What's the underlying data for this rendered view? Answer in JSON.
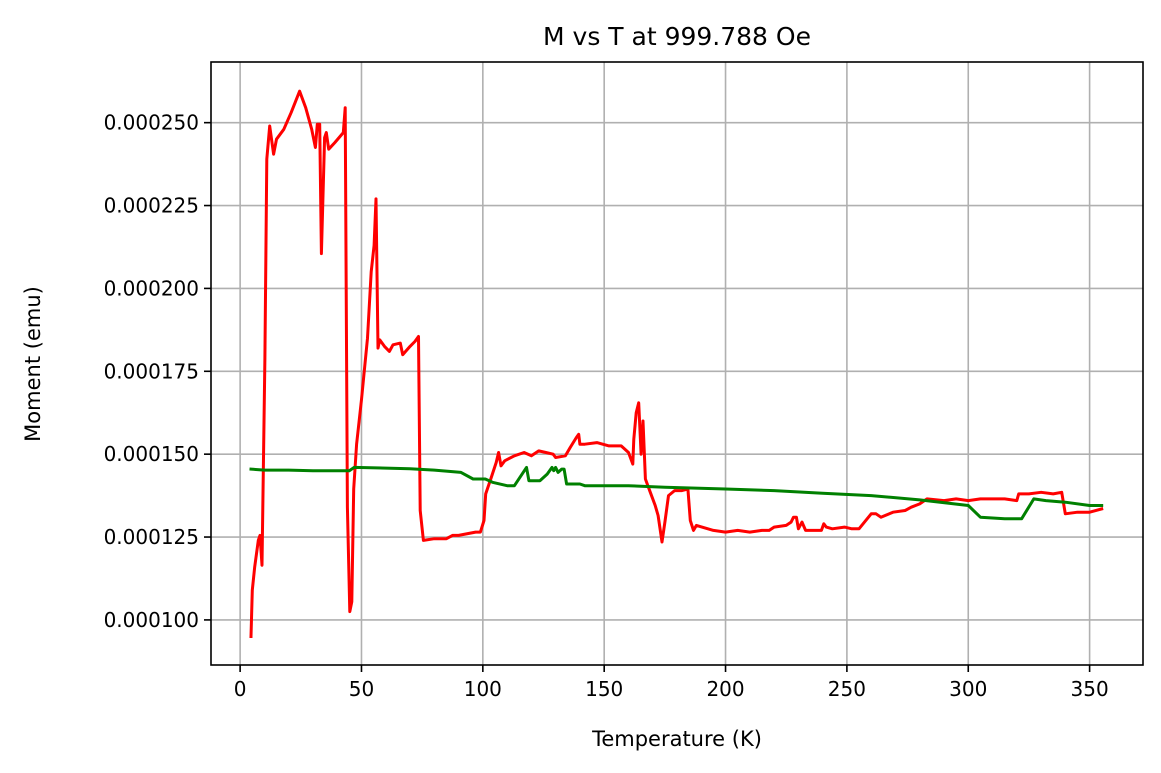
{
  "chart_data": {
    "type": "line",
    "title": "M vs T at 999.788 Oe",
    "xlabel": "Temperature (K)",
    "ylabel": "Moment (emu)",
    "xlim": [
      -12,
      372
    ],
    "ylim": [
      8.64e-05,
      0.0002683
    ],
    "xticks": [
      0,
      50,
      100,
      150,
      200,
      250,
      300,
      350
    ],
    "xtick_labels": [
      "0",
      "50",
      "100",
      "150",
      "200",
      "250",
      "300",
      "350"
    ],
    "yticks": [
      0.0001,
      0.000125,
      0.00015,
      0.000175,
      0.0002,
      0.000225,
      0.00025
    ],
    "ytick_labels": [
      "0.000100",
      "0.000125",
      "0.000150",
      "0.000175",
      "0.000200",
      "0.000225",
      "0.000250"
    ],
    "grid": true,
    "series": [
      {
        "color": "#ff0000",
        "points": [
          [
            4.5,
            9.5e-05
          ],
          [
            5.0,
            0.000109
          ],
          [
            6.0,
            0.000116
          ],
          [
            7.5,
            0.000124
          ],
          [
            8.2,
            0.0001255
          ],
          [
            9.0,
            0.0001165
          ],
          [
            10.2,
            0.000179
          ],
          [
            11.0,
            0.000239
          ],
          [
            12.2,
            0.000249
          ],
          [
            13.8,
            0.0002405
          ],
          [
            15.0,
            0.000245
          ],
          [
            18.0,
            0.000248
          ],
          [
            21.0,
            0.000253
          ],
          [
            24.5,
            0.0002595
          ],
          [
            27.0,
            0.0002545
          ],
          [
            29.5,
            0.000248
          ],
          [
            31.0,
            0.0002425
          ],
          [
            31.8,
            0.0002495
          ],
          [
            32.8,
            0.0002495
          ],
          [
            33.5,
            0.0002105
          ],
          [
            34.8,
            0.0002455
          ],
          [
            35.5,
            0.000247
          ],
          [
            36.5,
            0.000242
          ],
          [
            39.0,
            0.000244
          ],
          [
            42.5,
            0.000247
          ],
          [
            43.3,
            0.0002545
          ],
          [
            44.2,
            0.000134
          ],
          [
            45.2,
            0.0001025
          ],
          [
            46.0,
            0.0001055
          ],
          [
            46.8,
            0.0001395
          ],
          [
            48.0,
            0.000153
          ],
          [
            50.0,
            0.0001665
          ],
          [
            52.5,
            0.000185
          ],
          [
            54.0,
            0.000205
          ],
          [
            55.2,
            0.000213
          ],
          [
            56.0,
            0.000227
          ],
          [
            56.8,
            0.000182
          ],
          [
            57.5,
            0.0001845
          ],
          [
            59.5,
            0.0001825
          ],
          [
            61.5,
            0.000181
          ],
          [
            63.0,
            0.000183
          ],
          [
            66.0,
            0.0001835
          ],
          [
            67.0,
            0.00018
          ],
          [
            70.0,
            0.0001825
          ],
          [
            72.0,
            0.000184
          ],
          [
            73.5,
            0.0001855
          ],
          [
            74.2,
            0.000133
          ],
          [
            75.5,
            0.000124
          ],
          [
            80.0,
            0.0001245
          ],
          [
            85.0,
            0.0001245
          ],
          [
            87.5,
            0.0001255
          ],
          [
            90.0,
            0.0001255
          ],
          [
            97.0,
            0.0001265
          ],
          [
            99.0,
            0.0001265
          ],
          [
            100.5,
            0.00013
          ],
          [
            101.2,
            0.000138
          ],
          [
            103.5,
            0.000143
          ],
          [
            105.5,
            0.0001475
          ],
          [
            106.5,
            0.0001505
          ],
          [
            107.5,
            0.0001465
          ],
          [
            109.0,
            0.000148
          ],
          [
            113.0,
            0.0001495
          ],
          [
            117.0,
            0.0001505
          ],
          [
            120.0,
            0.0001495
          ],
          [
            123.0,
            0.000151
          ],
          [
            126.0,
            0.0001505
          ],
          [
            129.0,
            0.00015
          ],
          [
            130.0,
            0.000149
          ],
          [
            134.0,
            0.0001495
          ],
          [
            136.0,
            0.000152
          ],
          [
            138.5,
            0.000155
          ],
          [
            139.5,
            0.000156
          ],
          [
            140.0,
            0.000153
          ],
          [
            142.0,
            0.000153
          ],
          [
            147.0,
            0.0001535
          ],
          [
            152.0,
            0.0001525
          ],
          [
            157.0,
            0.0001525
          ],
          [
            160.0,
            0.0001505
          ],
          [
            161.8,
            0.000147
          ],
          [
            162.2,
            0.0001545
          ],
          [
            163.2,
            0.0001625
          ],
          [
            164.2,
            0.0001655
          ],
          [
            165.2,
            0.00015
          ],
          [
            166.0,
            0.00016
          ],
          [
            167.0,
            0.0001425
          ],
          [
            169.0,
            0.0001385
          ],
          [
            171.0,
            0.0001345
          ],
          [
            172.2,
            0.0001315
          ],
          [
            173.8,
            0.0001235
          ],
          [
            175.0,
            0.0001295
          ],
          [
            176.5,
            0.0001375
          ],
          [
            179.0,
            0.000139
          ],
          [
            182.0,
            0.000139
          ],
          [
            184.5,
            0.0001395
          ],
          [
            185.5,
            0.00013
          ],
          [
            186.8,
            0.000127
          ],
          [
            188.0,
            0.0001285
          ],
          [
            195.0,
            0.000127
          ],
          [
            200.0,
            0.0001265
          ],
          [
            205.0,
            0.000127
          ],
          [
            210.0,
            0.0001265
          ],
          [
            215.0,
            0.000127
          ],
          [
            218.0,
            0.000127
          ],
          [
            220.0,
            0.000128
          ],
          [
            225.0,
            0.0001285
          ],
          [
            227.0,
            0.0001295
          ],
          [
            228.0,
            0.000131
          ],
          [
            229.2,
            0.000131
          ],
          [
            230.0,
            0.0001275
          ],
          [
            231.5,
            0.0001295
          ],
          [
            233.0,
            0.000127
          ],
          [
            239.5,
            0.000127
          ],
          [
            240.5,
            0.000129
          ],
          [
            241.5,
            0.000128
          ],
          [
            244.0,
            0.0001275
          ],
          [
            249.0,
            0.000128
          ],
          [
            252.0,
            0.0001275
          ],
          [
            255.0,
            0.0001275
          ],
          [
            260.0,
            0.000132
          ],
          [
            262.0,
            0.000132
          ],
          [
            264.0,
            0.000131
          ],
          [
            269.0,
            0.0001325
          ],
          [
            274.0,
            0.000133
          ],
          [
            276.5,
            0.000134
          ],
          [
            280.0,
            0.000135
          ],
          [
            283.0,
            0.0001365
          ],
          [
            290.0,
            0.000136
          ],
          [
            295.0,
            0.0001365
          ],
          [
            300.0,
            0.000136
          ],
          [
            305.0,
            0.0001365
          ],
          [
            310.0,
            0.0001365
          ],
          [
            315.0,
            0.0001365
          ],
          [
            320.0,
            0.000136
          ],
          [
            320.8,
            0.000138
          ],
          [
            325.0,
            0.000138
          ],
          [
            330.0,
            0.0001385
          ],
          [
            335.0,
            0.000138
          ],
          [
            338.5,
            0.0001385
          ],
          [
            340.0,
            0.000132
          ],
          [
            345.0,
            0.0001325
          ],
          [
            350.0,
            0.0001325
          ],
          [
            355.0,
            0.0001335
          ]
        ]
      },
      {
        "color": "#008000",
        "points": [
          [
            4.5,
            0.0001455
          ],
          [
            10.0,
            0.0001452
          ],
          [
            20.0,
            0.0001452
          ],
          [
            30.0,
            0.000145
          ],
          [
            40.0,
            0.000145
          ],
          [
            45.0,
            0.000145
          ],
          [
            47.0,
            0.000146
          ],
          [
            60.0,
            0.0001458
          ],
          [
            70.0,
            0.0001456
          ],
          [
            80.0,
            0.0001452
          ],
          [
            91.0,
            0.0001445
          ],
          [
            96.0,
            0.0001425
          ],
          [
            101.0,
            0.0001425
          ],
          [
            104.0,
            0.0001415
          ],
          [
            110.0,
            0.0001405
          ],
          [
            113.0,
            0.0001405
          ],
          [
            118.0,
            0.000146
          ],
          [
            119.0,
            0.000142
          ],
          [
            123.5,
            0.000142
          ],
          [
            126.5,
            0.000144
          ],
          [
            128.5,
            0.000146
          ],
          [
            129.2,
            0.000145
          ],
          [
            130.0,
            0.000146
          ],
          [
            131.0,
            0.0001445
          ],
          [
            132.5,
            0.0001455
          ],
          [
            133.5,
            0.0001455
          ],
          [
            134.5,
            0.000141
          ],
          [
            140.0,
            0.000141
          ],
          [
            142.0,
            0.0001405
          ],
          [
            160.0,
            0.0001405
          ],
          [
            175.0,
            0.00014
          ],
          [
            200.0,
            0.0001395
          ],
          [
            220.0,
            0.000139
          ],
          [
            240.0,
            0.0001382
          ],
          [
            260.0,
            0.0001375
          ],
          [
            280.0,
            0.0001362
          ],
          [
            300.0,
            0.0001345
          ],
          [
            305.0,
            0.000131
          ],
          [
            315.0,
            0.0001305
          ],
          [
            322.0,
            0.0001305
          ],
          [
            327.0,
            0.0001365
          ],
          [
            332.0,
            0.000136
          ],
          [
            340.0,
            0.0001355
          ],
          [
            350.0,
            0.0001345
          ],
          [
            355.0,
            0.0001345
          ]
        ]
      }
    ]
  }
}
